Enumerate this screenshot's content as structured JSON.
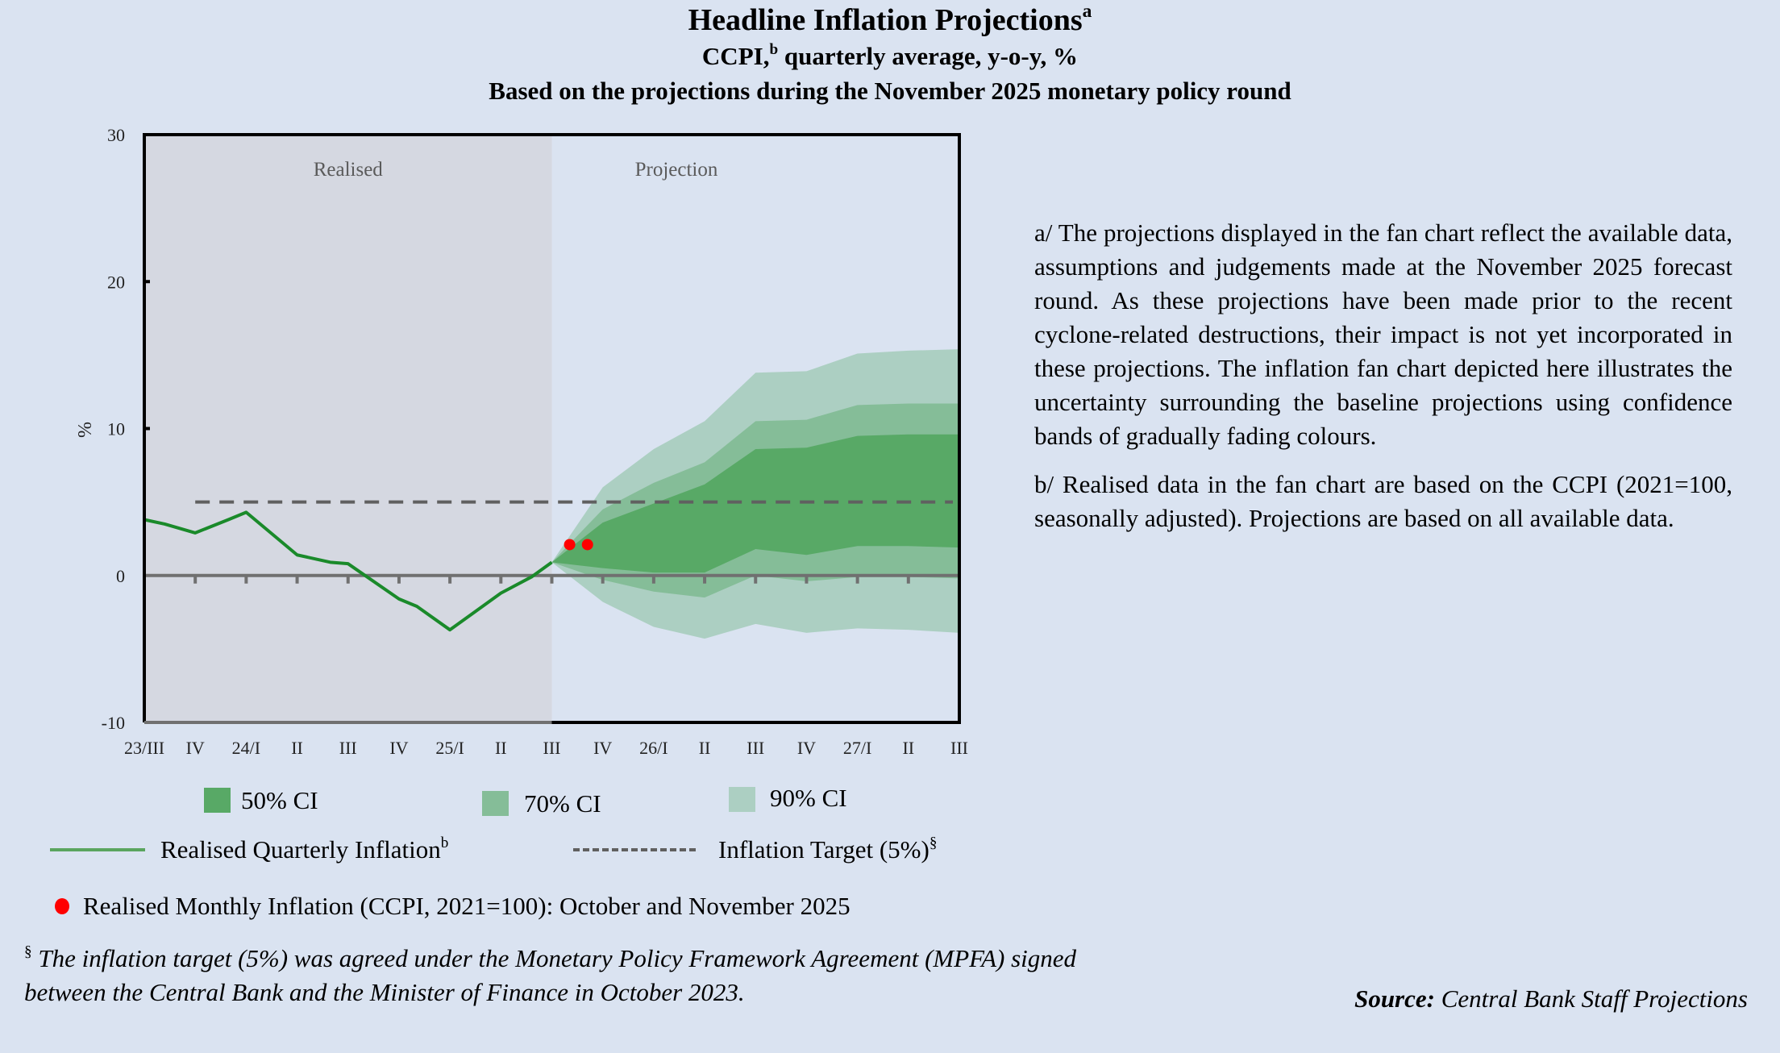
{
  "header": {
    "title": "Headline Inflation Projections",
    "title_sup": "a",
    "subtitle_pre": "CCPI,",
    "subtitle_sup": "b",
    "subtitle_post": " quarterly average, y-o-y, %",
    "subtitle2": "Based on the projections during the November 2025 monetary policy round"
  },
  "chart_data": {
    "type": "area",
    "title": "Headline Inflation Projections",
    "ylabel": "%",
    "xlabel": "",
    "ylim": [
      -10,
      30
    ],
    "yticks": [
      30,
      20,
      10,
      0,
      -10
    ],
    "grid": false,
    "region_labels": {
      "realised": "Realised",
      "projection": "Projection"
    },
    "realised_end_index": 8,
    "categories": [
      "23/III",
      "IV",
      "24/I",
      "II",
      "III",
      "IV",
      "25/I",
      "II",
      "III",
      "IV",
      "26/I",
      "II",
      "III",
      "IV",
      "27/I",
      "II",
      "III"
    ],
    "realised_series": {
      "name": "Realised Quarterly Inflation",
      "color": "#1a8a2a",
      "points": [
        {
          "q": 0,
          "value": 3.8
        },
        {
          "q": 0.4,
          "value": 3.5
        },
        {
          "q": 1,
          "value": 2.9
        },
        {
          "q": 1.65,
          "value": 3.8
        },
        {
          "q": 2,
          "value": 4.3
        },
        {
          "q": 3,
          "value": 1.4
        },
        {
          "q": 3.65,
          "value": 0.9
        },
        {
          "q": 4,
          "value": 0.8
        },
        {
          "q": 5,
          "value": -1.6
        },
        {
          "q": 5.35,
          "value": -2.1
        },
        {
          "q": 6,
          "value": -3.7
        },
        {
          "q": 7,
          "value": -1.2
        },
        {
          "q": 7.6,
          "value": -0.1
        },
        {
          "q": 8,
          "value": 0.9
        }
      ]
    },
    "monthly_points": {
      "name": "Realised Monthly Inflation (CCPI, 2021=100): October and November 2025",
      "color": "#ff0000",
      "points": [
        {
          "q": 8.35,
          "value": 2.1
        },
        {
          "q": 8.7,
          "value": 2.1
        }
      ]
    },
    "inflation_target": {
      "name": "Inflation Target (5%)",
      "value": 5,
      "from_q": 1,
      "to_q": 16,
      "color": "#606060"
    },
    "fan": {
      "quarters": [
        8,
        9,
        10,
        11,
        12,
        13,
        14,
        15,
        16
      ],
      "bands": [
        {
          "name": "90% CI",
          "color": "#accfc2",
          "upper": [
            0.9,
            6.0,
            8.6,
            10.5,
            13.8,
            13.9,
            15.1,
            15.3,
            15.4
          ],
          "lower": [
            0.9,
            -1.8,
            -3.5,
            -4.3,
            -3.3,
            -3.9,
            -3.6,
            -3.7,
            -3.9
          ]
        },
        {
          "name": "70% CI",
          "color": "#85bd98",
          "upper": [
            0.9,
            4.5,
            6.3,
            7.7,
            10.5,
            10.6,
            11.6,
            11.7,
            11.7
          ],
          "lower": [
            0.9,
            -0.3,
            -1.1,
            -1.5,
            0.0,
            -0.4,
            -0.1,
            -0.1,
            -0.2
          ]
        },
        {
          "name": "50% CI",
          "color": "#58a966",
          "upper": [
            0.9,
            3.6,
            4.9,
            6.2,
            8.6,
            8.7,
            9.5,
            9.6,
            9.6
          ],
          "lower": [
            0.9,
            0.5,
            0.2,
            0.2,
            1.8,
            1.4,
            2.0,
            2.0,
            1.9
          ]
        }
      ]
    }
  },
  "legend": {
    "ci50": "50% CI",
    "ci70": "70% CI",
    "ci90": "90% CI",
    "realised_line": "Realised Quarterly Inflation",
    "realised_line_sup": "b",
    "target": "Inflation Target (5%)",
    "target_sup": "§",
    "monthly": "Realised Monthly Inflation (CCPI, 2021=100): October and November 2025"
  },
  "notes": {
    "a": "a/ The projections displayed in the fan chart reflect the available data, assumptions and judgements made at the November 2025 forecast round. As these projections have been made prior to the recent cyclone-related destructions, their impact is not yet incorporated in these projections. The inflation fan chart depicted here illustrates the uncertainty surrounding the baseline projections using confidence bands of gradually fading colours.",
    "b": "b/ Realised data in the fan chart are based on the CCPI (2021=100, seasonally adjusted). Projections are based on all available data."
  },
  "footnote": {
    "mark": "§",
    "text": " The inflation target (5%) was agreed under the Monetary Policy Framework Agreement (MPFA) signed between the Central Bank and the Minister of Finance in October 2023."
  },
  "source": {
    "label": "Source:",
    "text": " Central Bank Staff Projections"
  }
}
